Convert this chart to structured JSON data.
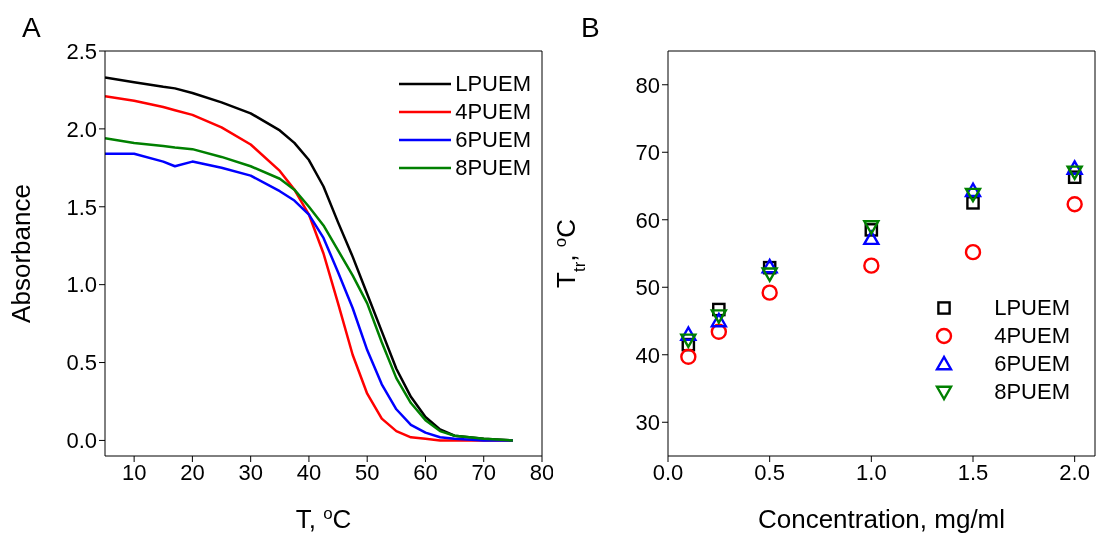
{
  "chart_data": [
    {
      "type": "line",
      "title": "A",
      "xlabel": "T, $^{o}$C",
      "ylabel": "Absorbance",
      "xlim": [
        5,
        80
      ],
      "xticks": [
        10,
        20,
        30,
        40,
        50,
        60,
        70,
        80
      ],
      "ylim": [
        -0.1,
        2.5
      ],
      "yticks": [
        {
          "value": 0,
          "label": "0.0"
        },
        0.5,
        {
          "value": 1,
          "label": "1.0"
        },
        1.5,
        {
          "value": 2,
          "label": "2.0"
        },
        2.5
      ],
      "legend": "top right",
      "marker": "none",
      "line_style": "solid",
      "grid": false,
      "x": [
        5,
        10,
        15,
        17,
        20,
        25,
        30,
        35,
        37.5,
        40,
        42.5,
        45,
        47.5,
        50,
        52.5,
        55,
        57.5,
        60,
        62.5,
        65,
        70,
        75
      ],
      "series": [
        {
          "name": "LPUEM",
          "color": "#000000",
          "values": [
            2.33,
            2.3,
            2.27,
            2.26,
            2.23,
            2.17,
            2.1,
            1.99,
            1.91,
            1.8,
            1.63,
            1.4,
            1.18,
            0.94,
            0.7,
            0.46,
            0.28,
            0.15,
            0.07,
            0.03,
            0.01,
            0
          ]
        },
        {
          "name": "4PUEM",
          "color": "#ff0000",
          "values": [
            2.21,
            2.18,
            2.14,
            2.12,
            2.09,
            2.01,
            1.9,
            1.73,
            1.61,
            1.45,
            1.2,
            0.88,
            0.55,
            0.3,
            0.14,
            0.06,
            0.02,
            0.01,
            0,
            0,
            0,
            0
          ]
        },
        {
          "name": "6PUEM",
          "color": "#0000ff",
          "values": [
            1.84,
            1.84,
            1.79,
            1.76,
            1.79,
            1.75,
            1.7,
            1.6,
            1.54,
            1.45,
            1.3,
            1.08,
            0.85,
            0.58,
            0.36,
            0.2,
            0.1,
            0.05,
            0.02,
            0.01,
            0,
            0
          ]
        },
        {
          "name": "8PUEM",
          "color": "#008000",
          "values": [
            1.94,
            1.91,
            1.89,
            1.88,
            1.87,
            1.82,
            1.76,
            1.68,
            1.61,
            1.5,
            1.38,
            1.22,
            1.06,
            0.88,
            0.63,
            0.4,
            0.24,
            0.13,
            0.06,
            0.03,
            0.01,
            0
          ]
        }
      ]
    },
    {
      "type": "scatter",
      "title": "B",
      "xlabel": "Concentration, mg/ml",
      "ylabel": "T$_{tr}$, $^{o}$C",
      "xlim": [
        0,
        2.1
      ],
      "xticks": [
        {
          "value": 0,
          "label": "0.0"
        },
        0.5,
        {
          "value": 1,
          "label": "1.0"
        },
        1.5,
        {
          "value": 2,
          "label": "2.0"
        }
      ],
      "ylim": [
        25,
        85
      ],
      "yticks": [
        30,
        40,
        50,
        60,
        70,
        80
      ],
      "legend": "bottom right",
      "grid": false,
      "x": [
        0.1,
        0.25,
        0.5,
        1.0,
        1.5,
        2.0
      ],
      "series": [
        {
          "name": "LPUEM",
          "color": "#000000",
          "marker": "square",
          "values": [
            41.5,
            46.7,
            52.9,
            58.5,
            62.5,
            66.3
          ]
        },
        {
          "name": "4PUEM",
          "color": "#ff0000",
          "marker": "circle",
          "values": [
            39.7,
            43.4,
            49.2,
            53.2,
            55.2,
            62.3
          ]
        },
        {
          "name": "6PUEM",
          "color": "#0000ff",
          "marker": "triangle",
          "values": [
            43,
            45,
            53,
            57.2,
            64.3,
            67.6
          ]
        },
        {
          "name": "8PUEM",
          "color": "#008000",
          "marker": "triangle-down",
          "values": [
            42.2,
            45.8,
            52,
            59,
            63.8,
            67.1
          ]
        }
      ]
    }
  ]
}
